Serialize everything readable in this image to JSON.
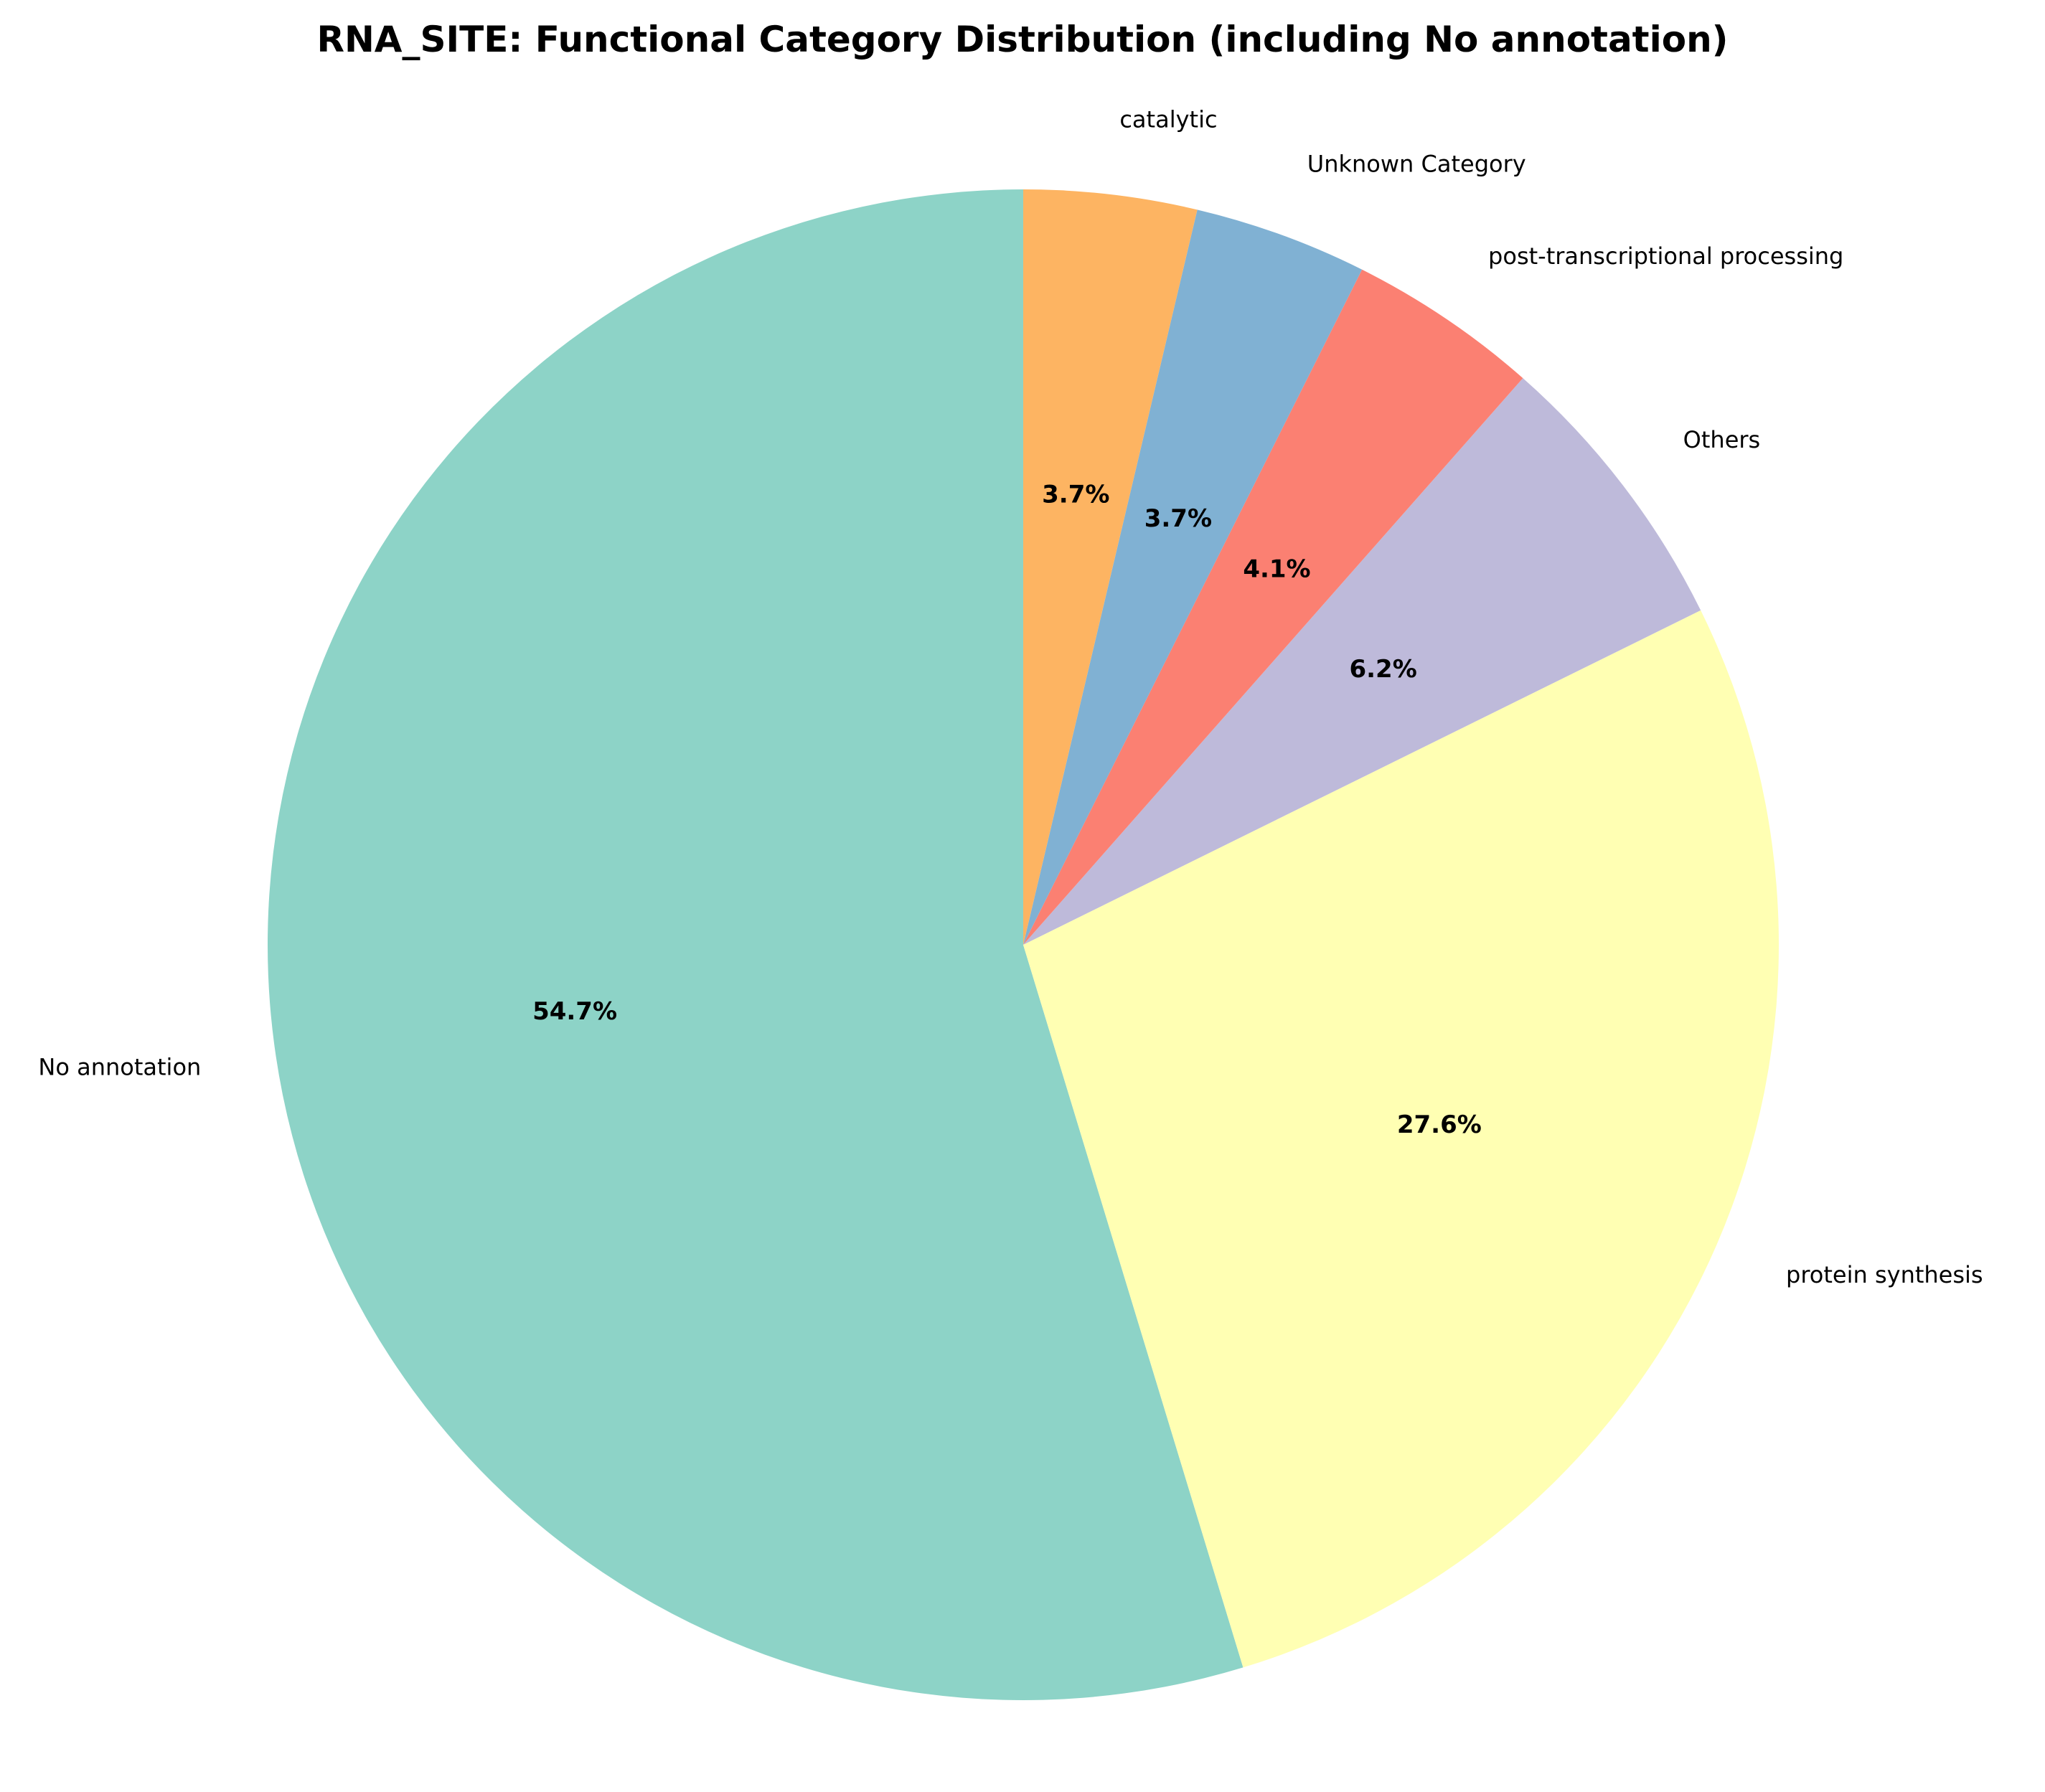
{
  "chart_data": {
    "type": "pie",
    "title": "RNA_SITE: Functional Category Distribution (including No annotation)",
    "start_angle_deg": 90,
    "direction": "counterclockwise",
    "slices": [
      {
        "label": "No annotation",
        "value": 54.7,
        "pct_label": "54.7%",
        "color": "#8dd3c7"
      },
      {
        "label": "protein synthesis",
        "value": 27.6,
        "pct_label": "27.6%",
        "color": "#ffffb3"
      },
      {
        "label": "Others",
        "value": 6.2,
        "pct_label": "6.2%",
        "color": "#bebada"
      },
      {
        "label": "post-transcriptional processing",
        "value": 4.1,
        "pct_label": "4.1%",
        "color": "#fb8072"
      },
      {
        "label": "Unknown Category",
        "value": 3.7,
        "pct_label": "3.7%",
        "color": "#80b1d3"
      },
      {
        "label": "catalytic",
        "value": 3.7,
        "pct_label": "3.7%",
        "color": "#fdb462"
      }
    ]
  }
}
